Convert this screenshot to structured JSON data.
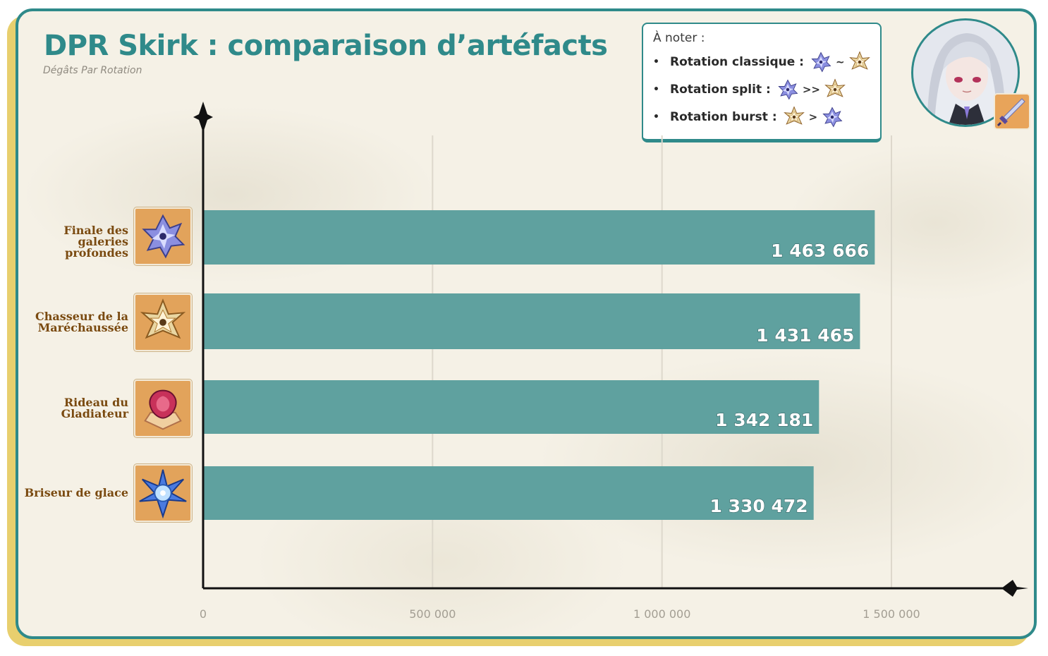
{
  "header": {
    "title": "DPR Skirk : comparaison d’artéfacts",
    "subtitle": "Dégâts Par Rotation"
  },
  "note": {
    "heading": "À noter :",
    "rows": [
      {
        "label": "Rotation classique :",
        "separator": "~",
        "first_icon": "finale-des-galeries-profondes-icon",
        "second_icon": "chasseur-de-la-marechaussee-icon"
      },
      {
        "label": "Rotation split :",
        "separator": ">>",
        "first_icon": "finale-des-galeries-profondes-icon",
        "second_icon": "chasseur-de-la-marechaussee-icon"
      },
      {
        "label": "Rotation burst :",
        "separator": ">",
        "first_icon": "chasseur-de-la-marechaussee-icon",
        "second_icon": "finale-des-galeries-profondes-icon"
      }
    ]
  },
  "portrait": {
    "icon": "skirk-portrait-icon",
    "weapon_icon": "sword-weapon-icon"
  },
  "colors": {
    "accent": "#2f8a8a",
    "bar": "#5fa19f",
    "label_brown": "#7a4a10",
    "icon_bg": "#e2a35b",
    "frame_gold": "#e8cf6e"
  },
  "chart_data": {
    "type": "bar",
    "orientation": "horizontal",
    "categories": [
      [
        "Finale des galeries",
        "profondes"
      ],
      [
        "Chasseur de la",
        "Maréchaussée"
      ],
      [
        "Rideau du",
        "Gladiateur"
      ],
      [
        "Briseur de glace"
      ]
    ],
    "category_icons": [
      "finale-des-galeries-profondes-icon",
      "chasseur-de-la-marechaussee-icon",
      "rideau-du-gladiateur-icon",
      "briseur-de-glace-icon"
    ],
    "values": [
      1463666,
      1431465,
      1342181,
      1330472
    ],
    "value_labels": [
      "1 463 666",
      "1 431 465",
      "1 342 181",
      "1 330 472"
    ],
    "x_ticks": [
      0,
      500000,
      1000000,
      1500000
    ],
    "x_tick_labels": [
      "0",
      "500 000",
      "1 000 000",
      "1 500 000"
    ],
    "xlim": [
      0,
      1750000
    ],
    "grid": true,
    "xlabel": "",
    "ylabel": ""
  }
}
